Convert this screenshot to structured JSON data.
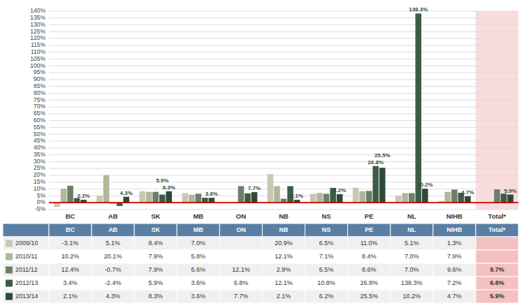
{
  "chart_data": {
    "type": "bar",
    "categories": [
      "BC",
      "AB",
      "SK",
      "MB",
      "ON",
      "NB",
      "NS",
      "PE",
      "NL",
      "NIHB",
      "Total*"
    ],
    "series": [
      {
        "name": "2009/10",
        "color": "#c8c8b0",
        "values": [
          -3.1,
          5.1,
          8.4,
          7.0,
          null,
          20.9,
          6.5,
          11.0,
          5.1,
          1.3,
          null
        ],
        "value_labels": [
          "-3.1%",
          "5.1%",
          "8.4%",
          "7.0%",
          null,
          "20.9%",
          "6.5%",
          "11.0%",
          "5.1%",
          "1.3%",
          null
        ]
      },
      {
        "name": "2010/11",
        "color": "#b0b898",
        "values": [
          10.2,
          20.1,
          7.9,
          5.8,
          null,
          12.1,
          7.1,
          8.4,
          7.0,
          7.9,
          null
        ],
        "value_labels": [
          "10.2%",
          "20.1%",
          "7.9%",
          "5.8%",
          null,
          "12.1%",
          "7.1%",
          "8.4%",
          "7.0%",
          "7.9%",
          null
        ]
      },
      {
        "name": "2011/12",
        "color": "#6b8068",
        "values": [
          12.4,
          -0.7,
          7.9,
          6.6,
          12.1,
          2.9,
          6.5,
          8.6,
          7.0,
          9.6,
          9.7
        ],
        "value_labels": [
          "12.4%",
          "-0.7%",
          "7.9%",
          "6.6%",
          "12.1%",
          "2.9%",
          "6.5%",
          "8.6%",
          "7.0%",
          "9.6%",
          "9.7%"
        ]
      },
      {
        "name": "2012/13",
        "color": "#3d5c45",
        "values": [
          3.4,
          -2.4,
          5.9,
          3.6,
          6.8,
          12.1,
          10.8,
          26.8,
          138.3,
          7.2,
          6.6
        ],
        "value_labels": [
          "3.4%",
          "-2.4%",
          "5.9%",
          "3.6%",
          "6.8%",
          "12.1%",
          "10.8%",
          "26.8%",
          "138.3%",
          "7.2%",
          "6.6%"
        ]
      },
      {
        "name": "2013/14",
        "color": "#2d4a38",
        "values": [
          2.1,
          4.3,
          8.3,
          3.6,
          7.7,
          2.1,
          6.2,
          25.5,
          10.2,
          4.7,
          5.9
        ],
        "value_labels": [
          "2.1%",
          "4.3%",
          "8.3%",
          "3.6%",
          "7.7%",
          "2.1%",
          "6.2%",
          "25.5%",
          "10.2%",
          "4.7%",
          "5.9%"
        ],
        "data_labels": true
      }
    ],
    "annotations": [
      {
        "text": "5.9%",
        "x": "SK",
        "series": "2012/13"
      },
      {
        "text": "138.3%",
        "x": "NL",
        "series": "2012/13"
      },
      {
        "text": "26.8%",
        "x": "PE",
        "series": "2012/13"
      }
    ],
    "ylim": [
      -5,
      140
    ],
    "yticks": [
      {
        "value": -5,
        "label": "-5%"
      },
      {
        "value": 0,
        "label": "0%"
      },
      {
        "value": 5,
        "label": "5%"
      },
      {
        "value": 10,
        "label": "10%"
      },
      {
        "value": 15,
        "label": "15%"
      },
      {
        "value": 20,
        "label": "20%"
      },
      {
        "value": 25,
        "label": "25%"
      },
      {
        "value": 30,
        "label": "30%"
      },
      {
        "value": 35,
        "label": "35%"
      },
      {
        "value": 40,
        "label": "40%"
      },
      {
        "value": 45,
        "label": "45%"
      },
      {
        "value": 50,
        "label": "50%"
      },
      {
        "value": 55,
        "label": "55%"
      },
      {
        "value": 60,
        "label": "60%"
      },
      {
        "value": 65,
        "label": "65%"
      },
      {
        "value": 70,
        "label": "70%"
      },
      {
        "value": 75,
        "label": "75%"
      },
      {
        "value": 80,
        "label": "80%"
      },
      {
        "value": 85,
        "label": "85%"
      },
      {
        "value": 90,
        "label": "90%"
      },
      {
        "value": 95,
        "label": "95%"
      },
      {
        "value": 100,
        "label": "100%"
      },
      {
        "value": 105,
        "label": "105%"
      },
      {
        "value": 110,
        "label": "110%"
      },
      {
        "value": 115,
        "label": "115%"
      },
      {
        "value": 120,
        "label": "120%"
      },
      {
        "value": 125,
        "label": "125%"
      },
      {
        "value": 130,
        "label": "130%"
      },
      {
        "value": 135,
        "label": "135%"
      },
      {
        "value": 140,
        "label": "140%"
      }
    ],
    "grid": true
  }
}
